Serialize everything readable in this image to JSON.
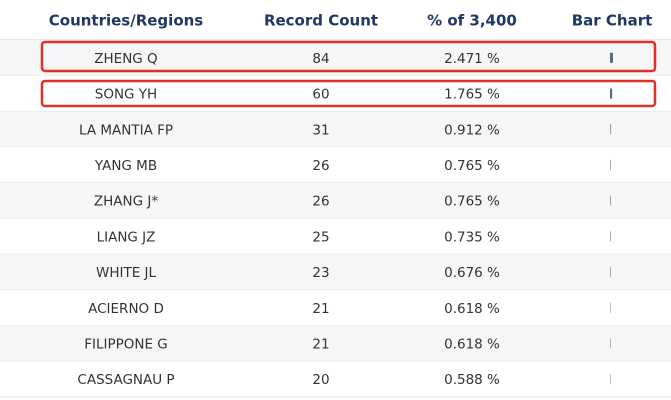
{
  "header": {
    "columns": [
      "Countries/Regions",
      "Record Count",
      "% of 3,400",
      "Bar Chart"
    ]
  },
  "table": {
    "rows": [
      [
        "ZHENG Q",
        84,
        "2.471 %"
      ],
      [
        "SONG YH",
        60,
        "1.765 %"
      ],
      [
        "LA MANTIA FP",
        31,
        "0.912 %"
      ],
      [
        "YANG MB",
        26,
        "0.765 %"
      ],
      [
        "ZHANG J*",
        26,
        "0.765 %"
      ],
      [
        "LIANG JZ",
        25,
        "0.735 %"
      ],
      [
        "WHITE JL",
        23,
        "0.676 %"
      ],
      [
        "ACIERNO D",
        21,
        "0.618 %"
      ],
      [
        "FILIPPONE G",
        21,
        "0.618 %"
      ],
      [
        "CASSAGNAU P",
        20,
        "0.588 %"
      ]
    ]
  }
}
